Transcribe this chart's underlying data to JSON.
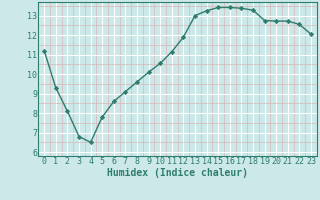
{
  "x": [
    0,
    1,
    2,
    3,
    4,
    5,
    6,
    7,
    8,
    9,
    10,
    11,
    12,
    13,
    14,
    15,
    16,
    17,
    18,
    19,
    20,
    21,
    22,
    23
  ],
  "y": [
    11.2,
    9.3,
    8.1,
    6.8,
    6.5,
    7.8,
    8.6,
    9.1,
    9.6,
    10.1,
    10.55,
    11.15,
    11.9,
    13.0,
    13.25,
    13.42,
    13.42,
    13.38,
    13.28,
    12.75,
    12.72,
    12.72,
    12.55,
    12.05
  ],
  "line_color": "#2e7d6e",
  "marker": "D",
  "marker_size": 2.2,
  "bg_color": "#cce8e8",
  "grid_color": "#ffffff",
  "xlabel": "Humidex (Indice chaleur)",
  "xlim": [
    -0.5,
    23.5
  ],
  "ylim": [
    5.8,
    13.7
  ],
  "xticks": [
    0,
    1,
    2,
    3,
    4,
    5,
    6,
    7,
    8,
    9,
    10,
    11,
    12,
    13,
    14,
    15,
    16,
    17,
    18,
    19,
    20,
    21,
    22,
    23
  ],
  "yticks": [
    6,
    7,
    8,
    9,
    10,
    11,
    12,
    13
  ],
  "xlabel_fontsize": 7,
  "tick_fontsize": 6,
  "line_width": 1.0
}
